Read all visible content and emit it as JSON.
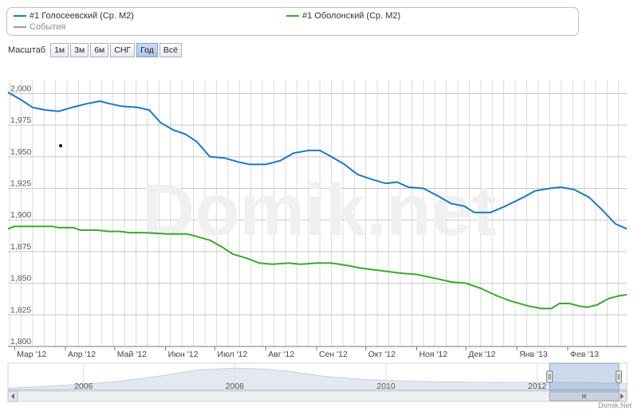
{
  "legend": {
    "items": [
      {
        "label": "#1 Голосеевский (Ср. М2)",
        "color": "#1a7bbf"
      },
      {
        "label": "#1 Оболонский (Ср. М2)",
        "color": "#3aa72f"
      },
      {
        "label": "События",
        "color": "#999999"
      }
    ]
  },
  "zoom": {
    "label": "Масштаб",
    "buttons": [
      "1м",
      "3м",
      "6м",
      "СНГ",
      "Год",
      "Всё"
    ],
    "active": "Год"
  },
  "watermark": "Domik.net",
  "credit": "Domik.Net",
  "chart_data": {
    "type": "line",
    "x_tick_labels": [
      "Мар '12",
      "Апр '12",
      "Май '12",
      "Июн '12",
      "Июл '12",
      "Авг '12",
      "Сен '12",
      "Окт '12",
      "Ноя '12",
      "Дек '12",
      "Янв '13",
      "Фев '13"
    ],
    "y_tick_labels": [
      "1,800",
      "1,825",
      "1,850",
      "1,875",
      "1,900",
      "1,925",
      "1,950",
      "1,975",
      "2,000"
    ],
    "ylim": [
      1800,
      2011
    ],
    "xlim": [
      "2012-02-26",
      "2013-03-09"
    ],
    "grid": true,
    "series": [
      {
        "name": "#1 Голосеевский (Ср. М2)",
        "color": "#1a7bbf",
        "points": [
          [
            "2012-02-26",
            2001
          ],
          [
            "2012-03-05",
            1995
          ],
          [
            "2012-03-12",
            1989
          ],
          [
            "2012-03-20",
            1987
          ],
          [
            "2012-03-28",
            1986
          ],
          [
            "2012-04-05",
            1989
          ],
          [
            "2012-04-14",
            1992
          ],
          [
            "2012-04-22",
            1994
          ],
          [
            "2012-04-28",
            1992
          ],
          [
            "2012-05-05",
            1990
          ],
          [
            "2012-05-15",
            1989
          ],
          [
            "2012-05-22",
            1987
          ],
          [
            "2012-05-29",
            1977
          ],
          [
            "2012-06-06",
            1971
          ],
          [
            "2012-06-13",
            1968
          ],
          [
            "2012-06-20",
            1962
          ],
          [
            "2012-06-28",
            1950
          ],
          [
            "2012-07-07",
            1949
          ],
          [
            "2012-07-15",
            1946
          ],
          [
            "2012-07-22",
            1944
          ],
          [
            "2012-08-01",
            1944
          ],
          [
            "2012-08-10",
            1947
          ],
          [
            "2012-08-18",
            1953
          ],
          [
            "2012-08-27",
            1955
          ],
          [
            "2012-09-03",
            1955
          ],
          [
            "2012-09-10",
            1950
          ],
          [
            "2012-09-18",
            1944
          ],
          [
            "2012-09-26",
            1936
          ],
          [
            "2012-10-05",
            1932
          ],
          [
            "2012-10-13",
            1929
          ],
          [
            "2012-10-20",
            1930
          ],
          [
            "2012-10-27",
            1926
          ],
          [
            "2012-11-05",
            1925
          ],
          [
            "2012-11-14",
            1919
          ],
          [
            "2012-11-22",
            1913
          ],
          [
            "2012-11-30",
            1911
          ],
          [
            "2012-12-06",
            1906
          ],
          [
            "2012-12-16",
            1906
          ],
          [
            "2012-12-25",
            1911
          ],
          [
            "2013-01-05",
            1918
          ],
          [
            "2013-01-12",
            1923
          ],
          [
            "2013-01-21",
            1925
          ],
          [
            "2013-01-28",
            1926
          ],
          [
            "2013-02-05",
            1924
          ],
          [
            "2013-02-14",
            1918
          ],
          [
            "2013-02-22",
            1908
          ],
          [
            "2013-03-02",
            1897
          ],
          [
            "2013-03-09",
            1893
          ]
        ]
      },
      {
        "name": "#1 Оболонский (Ср. М2)",
        "color": "#3aa72f",
        "points": [
          [
            "2012-02-26",
            1893
          ],
          [
            "2012-03-01",
            1895
          ],
          [
            "2012-03-12",
            1895
          ],
          [
            "2012-03-24",
            1895
          ],
          [
            "2012-03-28",
            1894
          ],
          [
            "2012-04-06",
            1894
          ],
          [
            "2012-04-10",
            1892
          ],
          [
            "2012-04-20",
            1892
          ],
          [
            "2012-04-27",
            1891
          ],
          [
            "2012-05-04",
            1891
          ],
          [
            "2012-05-10",
            1890
          ],
          [
            "2012-05-20",
            1890
          ],
          [
            "2012-06-02",
            1889
          ],
          [
            "2012-06-14",
            1889
          ],
          [
            "2012-06-20",
            1887
          ],
          [
            "2012-06-28",
            1884
          ],
          [
            "2012-07-05",
            1879
          ],
          [
            "2012-07-12",
            1873
          ],
          [
            "2012-07-20",
            1870
          ],
          [
            "2012-07-28",
            1866
          ],
          [
            "2012-08-05",
            1865
          ],
          [
            "2012-08-15",
            1866
          ],
          [
            "2012-08-22",
            1865
          ],
          [
            "2012-09-01",
            1866
          ],
          [
            "2012-09-10",
            1866
          ],
          [
            "2012-09-20",
            1864
          ],
          [
            "2012-09-28",
            1862
          ],
          [
            "2012-10-10",
            1860
          ],
          [
            "2012-10-22",
            1858
          ],
          [
            "2012-11-01",
            1857
          ],
          [
            "2012-11-12",
            1854
          ],
          [
            "2012-11-22",
            1851
          ],
          [
            "2012-12-01",
            1850
          ],
          [
            "2012-12-10",
            1846
          ],
          [
            "2012-12-20",
            1840
          ],
          [
            "2012-12-28",
            1836
          ],
          [
            "2013-01-08",
            1832
          ],
          [
            "2013-01-16",
            1830
          ],
          [
            "2013-01-22",
            1830
          ],
          [
            "2013-01-27",
            1834
          ],
          [
            "2013-02-02",
            1834
          ],
          [
            "2013-02-08",
            1832
          ],
          [
            "2013-02-13",
            1831
          ],
          [
            "2013-02-19",
            1833
          ],
          [
            "2013-02-26",
            1838
          ],
          [
            "2013-03-04",
            1840
          ],
          [
            "2013-03-09",
            1841
          ]
        ]
      }
    ],
    "navigator": {
      "x_tick_labels": [
        "2006",
        "2008",
        "2010",
        "2012"
      ],
      "xlim": [
        "2005-01-01",
        "2013-03-09"
      ],
      "selected_range": [
        "2012-03-01",
        "2013-03-09"
      ],
      "history": [
        [
          "2005-01-01",
          0.05
        ],
        [
          "2005-06-01",
          0.12
        ],
        [
          "2006-01-01",
          0.22
        ],
        [
          "2006-06-01",
          0.32
        ],
        [
          "2007-01-01",
          0.55
        ],
        [
          "2007-07-01",
          0.8
        ],
        [
          "2008-01-01",
          0.88
        ],
        [
          "2008-06-01",
          0.84
        ],
        [
          "2008-10-01",
          0.74
        ],
        [
          "2009-03-01",
          0.55
        ],
        [
          "2009-09-01",
          0.42
        ],
        [
          "2010-03-01",
          0.36
        ],
        [
          "2010-09-01",
          0.32
        ],
        [
          "2011-03-01",
          0.3
        ],
        [
          "2011-09-01",
          0.29
        ],
        [
          "2012-03-01",
          0.3
        ],
        [
          "2012-09-01",
          0.28
        ],
        [
          "2013-03-09",
          0.24
        ]
      ]
    }
  }
}
